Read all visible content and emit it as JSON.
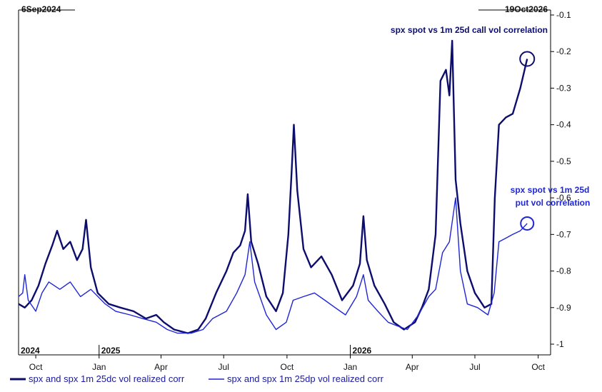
{
  "chart_data": {
    "type": "line",
    "start_label": "6Sep2024",
    "end_label": "19Oct2026",
    "ylim": [
      -1.0,
      -0.1
    ],
    "yticks": [
      "-0.1",
      "-0.2",
      "-0.3",
      "-0.4",
      "-0.5",
      "-0.6",
      "-0.7",
      "-0.8",
      "-0.9",
      "-1"
    ],
    "x_month_ticks": [
      "Oct",
      "Jan",
      "Apr",
      "Jul",
      "Oct",
      "Jan",
      "Apr",
      "Jul",
      "Oct"
    ],
    "x_year_labels": [
      "2024",
      "2025",
      "2026"
    ],
    "annotations": {
      "call_label": "spx spot vs 1m 25d call vol correlation",
      "put_label_line1": "spx spot vs 1m 25d",
      "put_label_line2": "put vol correlation"
    },
    "series": [
      {
        "name": "spx and spx 1m 25dc vol realized corr",
        "color": "#0d0d6e",
        "points": [
          [
            "2024-09-06",
            -0.89
          ],
          [
            "2024-09-15",
            -0.9
          ],
          [
            "2024-09-25",
            -0.88
          ],
          [
            "2024-10-05",
            -0.84
          ],
          [
            "2024-10-15",
            -0.78
          ],
          [
            "2024-10-25",
            -0.73
          ],
          [
            "2024-11-01",
            -0.69
          ],
          [
            "2024-11-10",
            -0.74
          ],
          [
            "2024-11-20",
            -0.72
          ],
          [
            "2024-11-30",
            -0.77
          ],
          [
            "2024-12-08",
            -0.74
          ],
          [
            "2024-12-13",
            -0.66
          ],
          [
            "2024-12-20",
            -0.79
          ],
          [
            "2024-12-30",
            -0.86
          ],
          [
            "2025-01-15",
            -0.89
          ],
          [
            "2025-02-01",
            -0.9
          ],
          [
            "2025-02-20",
            -0.91
          ],
          [
            "2025-03-10",
            -0.93
          ],
          [
            "2025-03-25",
            -0.92
          ],
          [
            "2025-04-05",
            -0.94
          ],
          [
            "2025-04-20",
            -0.96
          ],
          [
            "2025-05-10",
            -0.97
          ],
          [
            "2025-05-25",
            -0.96
          ],
          [
            "2025-06-05",
            -0.93
          ],
          [
            "2025-06-20",
            -0.86
          ],
          [
            "2025-07-05",
            -0.8
          ],
          [
            "2025-07-15",
            -0.75
          ],
          [
            "2025-07-25",
            -0.73
          ],
          [
            "2025-08-01",
            -0.69
          ],
          [
            "2025-08-05",
            -0.59
          ],
          [
            "2025-08-10",
            -0.72
          ],
          [
            "2025-08-20",
            -0.78
          ],
          [
            "2025-09-01",
            -0.87
          ],
          [
            "2025-09-15",
            -0.91
          ],
          [
            "2025-09-25",
            -0.86
          ],
          [
            "2025-10-03",
            -0.7
          ],
          [
            "2025-10-08",
            -0.52
          ],
          [
            "2025-10-11",
            -0.4
          ],
          [
            "2025-10-16",
            -0.58
          ],
          [
            "2025-10-25",
            -0.74
          ],
          [
            "2025-11-05",
            -0.79
          ],
          [
            "2025-11-20",
            -0.76
          ],
          [
            "2025-12-05",
            -0.81
          ],
          [
            "2025-12-20",
            -0.88
          ],
          [
            "2026-01-05",
            -0.84
          ],
          [
            "2026-01-15",
            -0.78
          ],
          [
            "2026-01-20",
            -0.65
          ],
          [
            "2026-01-25",
            -0.77
          ],
          [
            "2026-02-05",
            -0.84
          ],
          [
            "2026-02-20",
            -0.89
          ],
          [
            "2026-03-05",
            -0.94
          ],
          [
            "2026-03-20",
            -0.96
          ],
          [
            "2026-04-05",
            -0.94
          ],
          [
            "2026-04-15",
            -0.9
          ],
          [
            "2026-04-25",
            -0.85
          ],
          [
            "2026-05-05",
            -0.7
          ],
          [
            "2026-05-12",
            -0.28
          ],
          [
            "2026-05-20",
            -0.25
          ],
          [
            "2026-05-25",
            -0.32
          ],
          [
            "2026-05-29",
            -0.17
          ],
          [
            "2026-06-03",
            -0.55
          ],
          [
            "2026-06-10",
            -0.67
          ],
          [
            "2026-06-20",
            -0.8
          ],
          [
            "2026-07-01",
            -0.86
          ],
          [
            "2026-07-15",
            -0.9
          ],
          [
            "2026-07-25",
            -0.89
          ],
          [
            "2026-07-30",
            -0.6
          ],
          [
            "2026-08-05",
            -0.4
          ],
          [
            "2026-08-15",
            -0.38
          ],
          [
            "2026-08-25",
            -0.37
          ],
          [
            "2026-09-05",
            -0.3
          ],
          [
            "2026-09-15",
            -0.22
          ]
        ]
      },
      {
        "name": "spx and spx 1m 25dp vol realized corr",
        "color": "#1f26d6",
        "points": [
          [
            "2024-09-06",
            -0.87
          ],
          [
            "2024-09-12",
            -0.86
          ],
          [
            "2024-09-15",
            -0.81
          ],
          [
            "2024-09-20",
            -0.88
          ],
          [
            "2024-10-01",
            -0.91
          ],
          [
            "2024-10-10",
            -0.86
          ],
          [
            "2024-10-20",
            -0.83
          ],
          [
            "2024-11-05",
            -0.85
          ],
          [
            "2024-11-20",
            -0.83
          ],
          [
            "2024-12-05",
            -0.87
          ],
          [
            "2024-12-20",
            -0.85
          ],
          [
            "2025-01-10",
            -0.89
          ],
          [
            "2025-01-25",
            -0.91
          ],
          [
            "2025-02-15",
            -0.92
          ],
          [
            "2025-03-05",
            -0.93
          ],
          [
            "2025-03-25",
            -0.94
          ],
          [
            "2025-04-10",
            -0.96
          ],
          [
            "2025-04-25",
            -0.97
          ],
          [
            "2025-05-15",
            -0.97
          ],
          [
            "2025-06-01",
            -0.96
          ],
          [
            "2025-06-15",
            -0.93
          ],
          [
            "2025-07-05",
            -0.91
          ],
          [
            "2025-07-20",
            -0.86
          ],
          [
            "2025-08-01",
            -0.81
          ],
          [
            "2025-08-08",
            -0.72
          ],
          [
            "2025-08-15",
            -0.83
          ],
          [
            "2025-09-01",
            -0.92
          ],
          [
            "2025-09-15",
            -0.96
          ],
          [
            "2025-09-30",
            -0.94
          ],
          [
            "2025-10-10",
            -0.88
          ],
          [
            "2025-10-25",
            -0.87
          ],
          [
            "2025-11-10",
            -0.86
          ],
          [
            "2025-11-25",
            -0.88
          ],
          [
            "2025-12-10",
            -0.9
          ],
          [
            "2025-12-25",
            -0.92
          ],
          [
            "2026-01-10",
            -0.87
          ],
          [
            "2026-01-20",
            -0.81
          ],
          [
            "2026-01-27",
            -0.88
          ],
          [
            "2026-02-10",
            -0.91
          ],
          [
            "2026-02-25",
            -0.94
          ],
          [
            "2026-03-10",
            -0.95
          ],
          [
            "2026-03-25",
            -0.96
          ],
          [
            "2026-04-10",
            -0.92
          ],
          [
            "2026-04-25",
            -0.87
          ],
          [
            "2026-05-05",
            -0.85
          ],
          [
            "2026-05-15",
            -0.75
          ],
          [
            "2026-05-25",
            -0.72
          ],
          [
            "2026-06-03",
            -0.6
          ],
          [
            "2026-06-10",
            -0.8
          ],
          [
            "2026-06-20",
            -0.89
          ],
          [
            "2026-07-05",
            -0.9
          ],
          [
            "2026-07-20",
            -0.92
          ],
          [
            "2026-07-29",
            -0.86
          ],
          [
            "2026-08-05",
            -0.72
          ],
          [
            "2026-08-15",
            -0.71
          ],
          [
            "2026-08-25",
            -0.7
          ],
          [
            "2026-09-05",
            -0.69
          ],
          [
            "2026-09-15",
            -0.67
          ]
        ]
      }
    ],
    "legend_position": "bottom",
    "grid": false
  }
}
